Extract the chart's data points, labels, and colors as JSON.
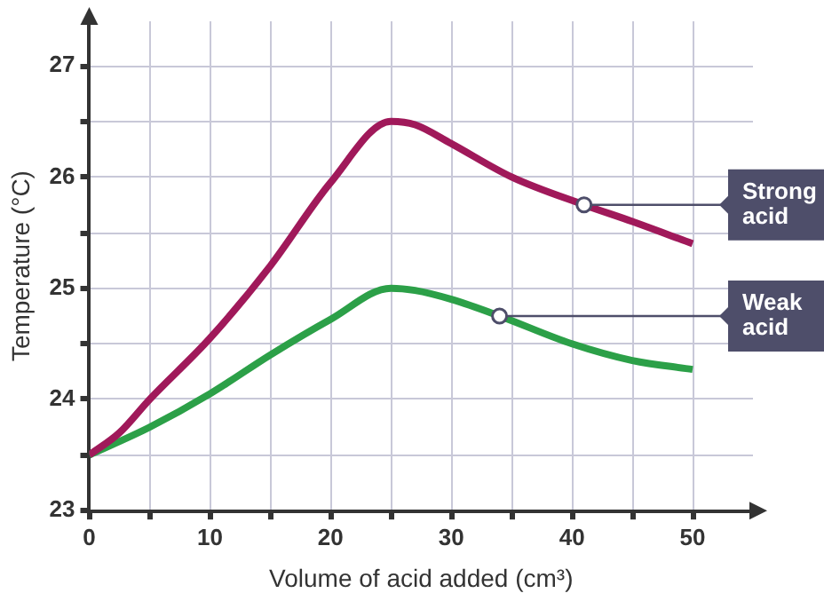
{
  "chart_data": {
    "type": "line",
    "xlabel": "Volume of acid added (cm³)",
    "ylabel": "Temperature (°C)",
    "xlim": [
      0,
      55
    ],
    "ylim": [
      23,
      27.4
    ],
    "xticks": [
      0,
      {
        "value": 5,
        "label": null
      },
      10,
      {
        "value": 15,
        "label": null
      },
      20,
      {
        "value": 25,
        "label": null
      },
      30,
      {
        "value": 35,
        "label": null
      },
      40,
      {
        "value": 45,
        "label": null
      },
      50
    ],
    "yticks": [
      23,
      {
        "value": 23.5,
        "label": null
      },
      24,
      {
        "value": 24.5,
        "label": null
      },
      25,
      {
        "value": 25.5,
        "label": null
      },
      26,
      {
        "value": 26.5,
        "label": null
      },
      27
    ],
    "grid": true,
    "legend": false,
    "marker": "none",
    "line_style": "solid",
    "series": [
      {
        "color": "#a0195a",
        "x": [
          0,
          2.5,
          5,
          10,
          15,
          20,
          25,
          27,
          30,
          35,
          41,
          45,
          50
        ],
        "values": [
          23.5,
          23.7,
          24.0,
          24.55,
          25.2,
          25.95,
          26.5,
          26.47,
          26.3,
          26.0,
          25.75,
          25.6,
          25.4
        ]
      },
      {
        "color": "#2ca048",
        "x": [
          0,
          5,
          10,
          15,
          20,
          25,
          27,
          30,
          34,
          40,
          45,
          50
        ],
        "values": [
          23.5,
          23.75,
          24.05,
          24.4,
          24.72,
          25.0,
          24.98,
          24.9,
          24.75,
          24.5,
          24.35,
          24.27
        ]
      }
    ],
    "annotations": [
      {
        "text": "Strong acid",
        "x": 41,
        "y": 25.75
      },
      {
        "text": "Weak acid",
        "x": 34,
        "y": 24.75
      }
    ]
  }
}
